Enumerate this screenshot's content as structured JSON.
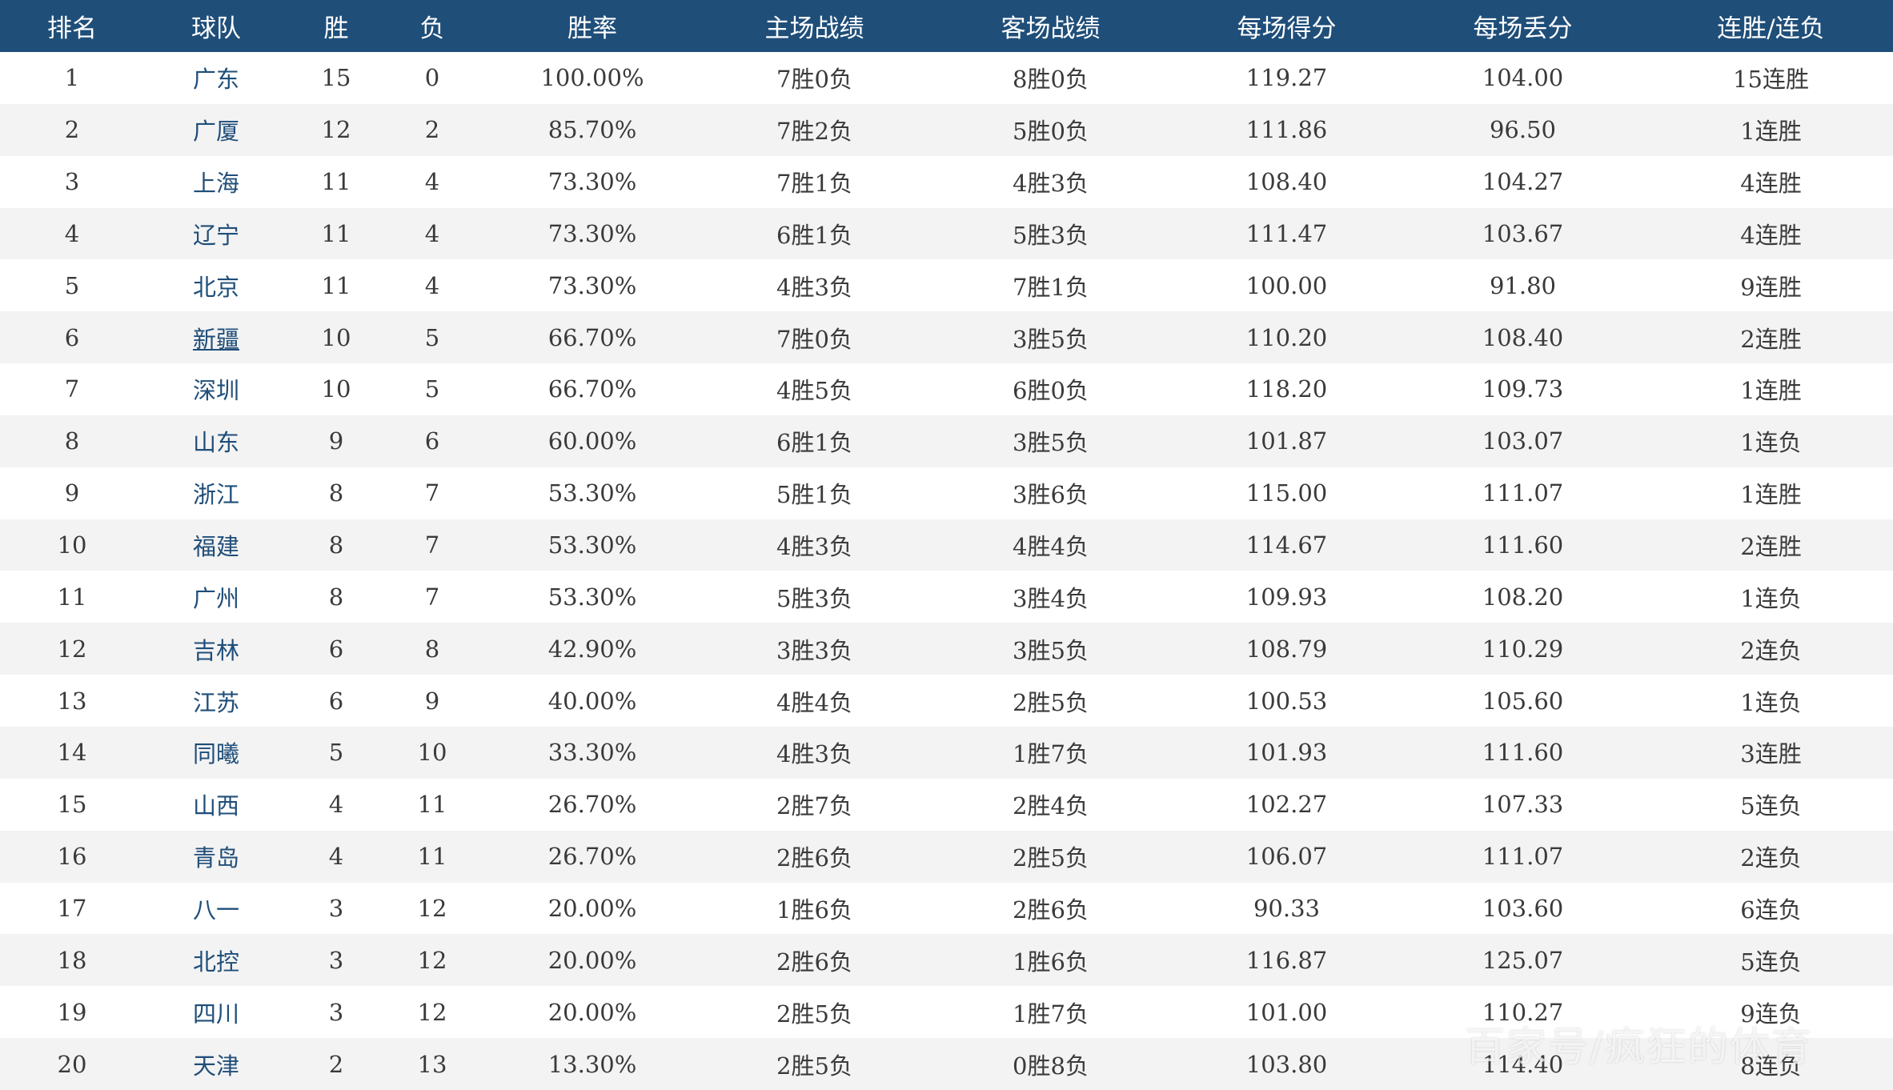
{
  "table": {
    "headers": [
      "排名",
      "球队",
      "胜",
      "负",
      "胜率",
      "主场战绩",
      "客场战绩",
      "每场得分",
      "每场丢分",
      "连胜/连负"
    ],
    "rows": [
      {
        "rank": "1",
        "team": "广东",
        "w": "15",
        "l": "0",
        "pct": "100.00%",
        "home": "7胜0负",
        "away": "8胜0负",
        "ppg": "119.27",
        "opp": "104.00",
        "streak": "15连胜"
      },
      {
        "rank": "2",
        "team": "广厦",
        "w": "12",
        "l": "2",
        "pct": "85.70%",
        "home": "7胜2负",
        "away": "5胜0负",
        "ppg": "111.86",
        "opp": "96.50",
        "streak": "1连胜"
      },
      {
        "rank": "3",
        "team": "上海",
        "w": "11",
        "l": "4",
        "pct": "73.30%",
        "home": "7胜1负",
        "away": "4胜3负",
        "ppg": "108.40",
        "opp": "104.27",
        "streak": "4连胜"
      },
      {
        "rank": "4",
        "team": "辽宁",
        "w": "11",
        "l": "4",
        "pct": "73.30%",
        "home": "6胜1负",
        "away": "5胜3负",
        "ppg": "111.47",
        "opp": "103.67",
        "streak": "4连胜"
      },
      {
        "rank": "5",
        "team": "北京",
        "w": "11",
        "l": "4",
        "pct": "73.30%",
        "home": "4胜3负",
        "away": "7胜1负",
        "ppg": "100.00",
        "opp": "91.80",
        "streak": "9连胜"
      },
      {
        "rank": "6",
        "team": "新疆",
        "w": "10",
        "l": "5",
        "pct": "66.70%",
        "home": "7胜0负",
        "away": "3胜5负",
        "ppg": "110.20",
        "opp": "108.40",
        "streak": "2连胜"
      },
      {
        "rank": "7",
        "team": "深圳",
        "w": "10",
        "l": "5",
        "pct": "66.70%",
        "home": "4胜5负",
        "away": "6胜0负",
        "ppg": "118.20",
        "opp": "109.73",
        "streak": "1连胜"
      },
      {
        "rank": "8",
        "team": "山东",
        "w": "9",
        "l": "6",
        "pct": "60.00%",
        "home": "6胜1负",
        "away": "3胜5负",
        "ppg": "101.87",
        "opp": "103.07",
        "streak": "1连负"
      },
      {
        "rank": "9",
        "team": "浙江",
        "w": "8",
        "l": "7",
        "pct": "53.30%",
        "home": "5胜1负",
        "away": "3胜6负",
        "ppg": "115.00",
        "opp": "111.07",
        "streak": "1连胜"
      },
      {
        "rank": "10",
        "team": "福建",
        "w": "8",
        "l": "7",
        "pct": "53.30%",
        "home": "4胜3负",
        "away": "4胜4负",
        "ppg": "114.67",
        "opp": "111.60",
        "streak": "2连胜"
      },
      {
        "rank": "11",
        "team": "广州",
        "w": "8",
        "l": "7",
        "pct": "53.30%",
        "home": "5胜3负",
        "away": "3胜4负",
        "ppg": "109.93",
        "opp": "108.20",
        "streak": "1连负"
      },
      {
        "rank": "12",
        "team": "吉林",
        "w": "6",
        "l": "8",
        "pct": "42.90%",
        "home": "3胜3负",
        "away": "3胜5负",
        "ppg": "108.79",
        "opp": "110.29",
        "streak": "2连负"
      },
      {
        "rank": "13",
        "team": "江苏",
        "w": "6",
        "l": "9",
        "pct": "40.00%",
        "home": "4胜4负",
        "away": "2胜5负",
        "ppg": "100.53",
        "opp": "105.60",
        "streak": "1连负"
      },
      {
        "rank": "14",
        "team": "同曦",
        "w": "5",
        "l": "10",
        "pct": "33.30%",
        "home": "4胜3负",
        "away": "1胜7负",
        "ppg": "101.93",
        "opp": "111.60",
        "streak": "3连胜"
      },
      {
        "rank": "15",
        "team": "山西",
        "w": "4",
        "l": "11",
        "pct": "26.70%",
        "home": "2胜7负",
        "away": "2胜4负",
        "ppg": "102.27",
        "opp": "107.33",
        "streak": "5连负"
      },
      {
        "rank": "16",
        "team": "青岛",
        "w": "4",
        "l": "11",
        "pct": "26.70%",
        "home": "2胜6负",
        "away": "2胜5负",
        "ppg": "106.07",
        "opp": "111.07",
        "streak": "2连负"
      },
      {
        "rank": "17",
        "team": "八一",
        "w": "3",
        "l": "12",
        "pct": "20.00%",
        "home": "1胜6负",
        "away": "2胜6负",
        "ppg": "90.33",
        "opp": "103.60",
        "streak": "6连负"
      },
      {
        "rank": "18",
        "team": "北控",
        "w": "3",
        "l": "12",
        "pct": "20.00%",
        "home": "2胜6负",
        "away": "1胜6负",
        "ppg": "116.87",
        "opp": "125.07",
        "streak": "5连负"
      },
      {
        "rank": "19",
        "team": "四川",
        "w": "3",
        "l": "12",
        "pct": "20.00%",
        "home": "2胜5负",
        "away": "1胜7负",
        "ppg": "101.00",
        "opp": "110.27",
        "streak": "9连负"
      },
      {
        "rank": "20",
        "team": "天津",
        "w": "2",
        "l": "13",
        "pct": "13.30%",
        "home": "2胜5负",
        "away": "0胜8负",
        "ppg": "103.80",
        "opp": "114.40",
        "streak": "8连负"
      }
    ],
    "linked_team_index": 5
  },
  "watermark": "百家号/疯狂的体育",
  "colors": {
    "header_bg": "#1f4e79",
    "header_text": "#ffffff",
    "team_link": "#1f4e79",
    "stripe": "#f3f3f3"
  }
}
